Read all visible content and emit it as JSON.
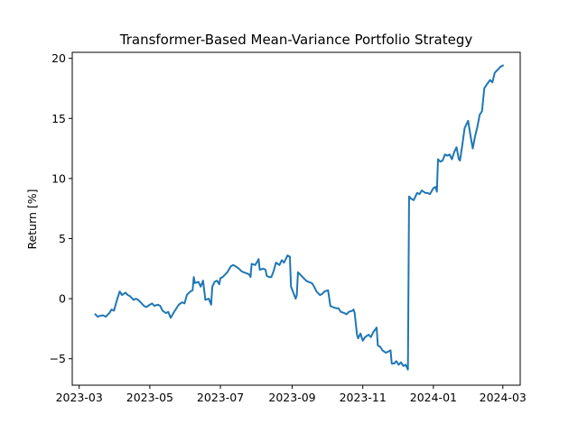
{
  "chart_data": {
    "type": "line",
    "title": "Transformer-Based Mean-Variance Portfolio Strategy",
    "xlabel": "",
    "ylabel": "Return [%]",
    "xlim": [
      "2023-02-23",
      "2024-03-16"
    ],
    "ylim": [
      -7.2,
      20.5
    ],
    "x_ticks": [
      "2023-03-01",
      "2023-05-01",
      "2023-07-01",
      "2023-09-01",
      "2023-11-01",
      "2024-01-01",
      "2024-03-01"
    ],
    "x_tick_labels": [
      "2023-03",
      "2023-05",
      "2023-07",
      "2023-09",
      "2023-11",
      "2024-01",
      "2024-03"
    ],
    "y_ticks": [
      -5,
      0,
      5,
      10,
      15,
      20
    ],
    "y_tick_labels": [
      "−5",
      "0",
      "5",
      "10",
      "15",
      "20"
    ],
    "grid": false,
    "series": [
      {
        "color": "#1f77b4",
        "points": [
          [
            "2023-03-15",
            -1.3
          ],
          [
            "2023-03-17",
            -1.5
          ],
          [
            "2023-03-20",
            -1.4
          ],
          [
            "2023-03-22",
            -1.4
          ],
          [
            "2023-03-24",
            -1.5
          ],
          [
            "2023-03-27",
            -1.2
          ],
          [
            "2023-03-29",
            -0.9
          ],
          [
            "2023-03-31",
            -1.0
          ],
          [
            "2023-04-03",
            0.0
          ],
          [
            "2023-04-05",
            0.6
          ],
          [
            "2023-04-07",
            0.3
          ],
          [
            "2023-04-10",
            0.5
          ],
          [
            "2023-04-12",
            0.3
          ],
          [
            "2023-04-14",
            0.2
          ],
          [
            "2023-04-17",
            -0.1
          ],
          [
            "2023-04-19",
            0.0
          ],
          [
            "2023-04-21",
            -0.1
          ],
          [
            "2023-04-24",
            -0.4
          ],
          [
            "2023-04-26",
            -0.6
          ],
          [
            "2023-04-28",
            -0.7
          ],
          [
            "2023-05-01",
            -0.5
          ],
          [
            "2023-05-03",
            -0.4
          ],
          [
            "2023-05-05",
            -0.6
          ],
          [
            "2023-05-08",
            -0.5
          ],
          [
            "2023-05-10",
            -0.6
          ],
          [
            "2023-05-12",
            -1.0
          ],
          [
            "2023-05-15",
            -1.2
          ],
          [
            "2023-05-17",
            -1.1
          ],
          [
            "2023-05-19",
            -1.6
          ],
          [
            "2023-05-22",
            -1.1
          ],
          [
            "2023-05-24",
            -0.8
          ],
          [
            "2023-05-26",
            -0.5
          ],
          [
            "2023-05-29",
            -0.3
          ],
          [
            "2023-05-31",
            -0.4
          ],
          [
            "2023-06-02",
            0.3
          ],
          [
            "2023-06-05",
            0.6
          ],
          [
            "2023-06-07",
            0.7
          ],
          [
            "2023-06-08",
            1.8
          ],
          [
            "2023-06-09",
            1.3
          ],
          [
            "2023-06-12",
            1.4
          ],
          [
            "2023-06-14",
            1.0
          ],
          [
            "2023-06-16",
            1.5
          ],
          [
            "2023-06-18",
            -0.1
          ],
          [
            "2023-06-21",
            0.0
          ],
          [
            "2023-06-23",
            -0.5
          ],
          [
            "2023-06-24",
            1.0
          ],
          [
            "2023-06-26",
            1.4
          ],
          [
            "2023-06-28",
            1.5
          ],
          [
            "2023-06-30",
            1.2
          ],
          [
            "2023-07-01",
            1.7
          ],
          [
            "2023-07-03",
            1.8
          ],
          [
            "2023-07-05",
            2.0
          ],
          [
            "2023-07-07",
            2.2
          ],
          [
            "2023-07-10",
            2.7
          ],
          [
            "2023-07-12",
            2.8
          ],
          [
            "2023-07-14",
            2.7
          ],
          [
            "2023-07-17",
            2.5
          ],
          [
            "2023-07-19",
            2.3
          ],
          [
            "2023-07-21",
            2.2
          ],
          [
            "2023-07-24",
            2.1
          ],
          [
            "2023-07-26",
            2.0
          ],
          [
            "2023-07-27",
            1.8
          ],
          [
            "2023-07-28",
            2.9
          ],
          [
            "2023-07-31",
            2.8
          ],
          [
            "2023-08-02",
            3.1
          ],
          [
            "2023-08-03",
            3.3
          ],
          [
            "2023-08-04",
            2.4
          ],
          [
            "2023-08-07",
            2.5
          ],
          [
            "2023-08-09",
            2.4
          ],
          [
            "2023-08-10",
            1.9
          ],
          [
            "2023-08-12",
            1.8
          ],
          [
            "2023-08-14",
            1.8
          ],
          [
            "2023-08-16",
            2.3
          ],
          [
            "2023-08-18",
            3.0
          ],
          [
            "2023-08-21",
            2.8
          ],
          [
            "2023-08-23",
            3.2
          ],
          [
            "2023-08-25",
            3.0
          ],
          [
            "2023-08-28",
            3.6
          ],
          [
            "2023-08-30",
            3.5
          ],
          [
            "2023-08-31",
            1.0
          ],
          [
            "2023-09-02",
            0.5
          ],
          [
            "2023-09-04",
            0.0
          ],
          [
            "2023-09-05",
            0.3
          ],
          [
            "2023-09-06",
            2.2
          ],
          [
            "2023-09-08",
            2.0
          ],
          [
            "2023-09-11",
            1.7
          ],
          [
            "2023-09-13",
            1.5
          ],
          [
            "2023-09-15",
            1.4
          ],
          [
            "2023-09-18",
            1.3
          ],
          [
            "2023-09-20",
            1.0
          ],
          [
            "2023-09-22",
            0.6
          ],
          [
            "2023-09-25",
            0.3
          ],
          [
            "2023-09-27",
            0.4
          ],
          [
            "2023-09-29",
            0.6
          ],
          [
            "2023-10-02",
            0.7
          ],
          [
            "2023-10-04",
            -0.6
          ],
          [
            "2023-10-06",
            -0.7
          ],
          [
            "2023-10-09",
            -0.8
          ],
          [
            "2023-10-11",
            -0.8
          ],
          [
            "2023-10-13",
            -1.1
          ],
          [
            "2023-10-16",
            -1.2
          ],
          [
            "2023-10-18",
            -1.3
          ],
          [
            "2023-10-20",
            -1.1
          ],
          [
            "2023-10-23",
            -1.0
          ],
          [
            "2023-10-24",
            -0.9
          ],
          [
            "2023-10-25",
            -1.2
          ],
          [
            "2023-10-27",
            -3.0
          ],
          [
            "2023-10-28",
            -3.3
          ],
          [
            "2023-10-30",
            -2.9
          ],
          [
            "2023-11-01",
            -3.5
          ],
          [
            "2023-11-03",
            -3.2
          ],
          [
            "2023-11-06",
            -3.0
          ],
          [
            "2023-11-08",
            -3.2
          ],
          [
            "2023-11-10",
            -2.8
          ],
          [
            "2023-11-13",
            -2.4
          ],
          [
            "2023-11-14",
            -3.9
          ],
          [
            "2023-11-16",
            -4.0
          ],
          [
            "2023-11-18",
            -4.3
          ],
          [
            "2023-11-21",
            -4.5
          ],
          [
            "2023-11-23",
            -4.4
          ],
          [
            "2023-11-25",
            -4.3
          ],
          [
            "2023-11-26",
            -5.4
          ],
          [
            "2023-11-28",
            -5.4
          ],
          [
            "2023-11-30",
            -5.2
          ],
          [
            "2023-12-02",
            -5.5
          ],
          [
            "2023-12-04",
            -5.3
          ],
          [
            "2023-12-06",
            -5.6
          ],
          [
            "2023-12-08",
            -5.5
          ],
          [
            "2023-12-10",
            -5.9
          ],
          [
            "2023-12-11",
            8.5
          ],
          [
            "2023-12-13",
            8.3
          ],
          [
            "2023-12-15",
            8.2
          ],
          [
            "2023-12-18",
            8.8
          ],
          [
            "2023-12-20",
            8.7
          ],
          [
            "2023-12-22",
            9.0
          ],
          [
            "2023-12-25",
            8.8
          ],
          [
            "2023-12-27",
            8.8
          ],
          [
            "2023-12-29",
            8.7
          ],
          [
            "2024-01-01",
            9.2
          ],
          [
            "2024-01-03",
            9.3
          ],
          [
            "2024-01-04",
            8.9
          ],
          [
            "2024-01-05",
            11.6
          ],
          [
            "2024-01-07",
            11.4
          ],
          [
            "2024-01-09",
            11.5
          ],
          [
            "2024-01-11",
            12.0
          ],
          [
            "2024-01-13",
            11.9
          ],
          [
            "2024-01-15",
            12.0
          ],
          [
            "2024-01-17",
            11.6
          ],
          [
            "2024-01-19",
            12.2
          ],
          [
            "2024-01-21",
            12.6
          ],
          [
            "2024-01-23",
            11.6
          ],
          [
            "2024-01-24",
            11.5
          ],
          [
            "2024-01-26",
            12.8
          ],
          [
            "2024-01-28",
            14.2
          ],
          [
            "2024-01-31",
            14.8
          ],
          [
            "2024-02-02",
            13.6
          ],
          [
            "2024-02-04",
            12.5
          ],
          [
            "2024-02-06",
            13.5
          ],
          [
            "2024-02-08",
            14.3
          ],
          [
            "2024-02-10",
            15.3
          ],
          [
            "2024-02-12",
            15.6
          ],
          [
            "2024-02-14",
            17.5
          ],
          [
            "2024-02-16",
            17.8
          ],
          [
            "2024-02-19",
            18.2
          ],
          [
            "2024-02-21",
            18.0
          ],
          [
            "2024-02-23",
            18.8
          ],
          [
            "2024-02-26",
            19.1
          ],
          [
            "2024-02-28",
            19.3
          ],
          [
            "2024-03-01",
            19.4
          ]
        ]
      }
    ]
  }
}
